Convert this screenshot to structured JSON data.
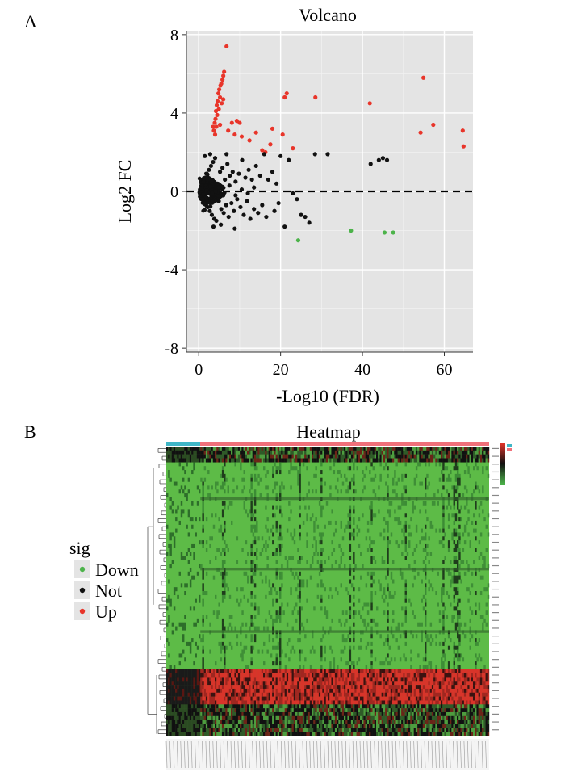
{
  "panels": {
    "a": "A",
    "b": "B"
  },
  "chart_data": [
    {
      "type": "scatter",
      "title": "Volcano",
      "xlabel": "-Log10 (FDR)",
      "ylabel": "Log2 FC",
      "xlim": [
        -3,
        67
      ],
      "ylim": [
        -8.2,
        8.2
      ],
      "xticks": [
        0,
        20,
        40,
        60
      ],
      "yticks": [
        -8,
        -4,
        0,
        4,
        8
      ],
      "threshold_line_y": 0,
      "grid": true,
      "series": [
        {
          "name": "Up",
          "color": "#e8352a",
          "points": [
            [
              6.8,
              7.4
            ],
            [
              6.2,
              6.1
            ],
            [
              6.0,
              5.9
            ],
            [
              5.8,
              5.7
            ],
            [
              5.5,
              5.5
            ],
            [
              5.3,
              5.4
            ],
            [
              5.0,
              5.2
            ],
            [
              4.8,
              5.0
            ],
            [
              5.2,
              4.8
            ],
            [
              4.6,
              4.6
            ],
            [
              4.4,
              4.4
            ],
            [
              4.9,
              4.2
            ],
            [
              4.2,
              4.1
            ],
            [
              4.5,
              3.9
            ],
            [
              4.1,
              3.7
            ],
            [
              3.9,
              3.5
            ],
            [
              4.3,
              3.3
            ],
            [
              3.7,
              3.1
            ],
            [
              3.5,
              3.3
            ],
            [
              4.0,
              2.9
            ],
            [
              5.6,
              4.5
            ],
            [
              6.0,
              4.7
            ],
            [
              5.2,
              3.4
            ],
            [
              7.2,
              3.1
            ],
            [
              8.1,
              3.5
            ],
            [
              9.3,
              3.6
            ],
            [
              10.0,
              3.5
            ],
            [
              8.8,
              2.9
            ],
            [
              10.5,
              2.8
            ],
            [
              12.4,
              2.6
            ],
            [
              14.0,
              3.0
            ],
            [
              15.5,
              2.1
            ],
            [
              16.3,
              2.0
            ],
            [
              18.0,
              3.2
            ],
            [
              17.5,
              2.4
            ],
            [
              20.5,
              2.9
            ],
            [
              21.0,
              4.8
            ],
            [
              21.5,
              5.0
            ],
            [
              23.0,
              2.2
            ],
            [
              28.5,
              4.8
            ],
            [
              41.8,
              4.5
            ],
            [
              54.9,
              5.8
            ],
            [
              57.3,
              3.4
            ],
            [
              54.2,
              3.0
            ],
            [
              64.5,
              3.1
            ],
            [
              64.7,
              2.3
            ]
          ]
        },
        {
          "name": "Not",
          "color": "#111111",
          "points": [
            [
              0.3,
              0.1
            ],
            [
              0.5,
              -0.2
            ],
            [
              0.8,
              0.3
            ],
            [
              1.0,
              -0.4
            ],
            [
              1.2,
              0.5
            ],
            [
              1.4,
              -0.6
            ],
            [
              1.6,
              0.7
            ],
            [
              1.8,
              -0.3
            ],
            [
              2.0,
              0.9
            ],
            [
              2.2,
              -0.8
            ],
            [
              2.5,
              1.1
            ],
            [
              2.7,
              -1.0
            ],
            [
              3.0,
              1.3
            ],
            [
              3.2,
              -1.2
            ],
            [
              3.5,
              1.5
            ],
            [
              3.8,
              -1.4
            ],
            [
              4.0,
              1.7
            ],
            [
              4.3,
              -1.5
            ],
            [
              4.6,
              0.4
            ],
            [
              4.9,
              -0.5
            ],
            [
              5.2,
              1.0
            ],
            [
              5.5,
              -0.9
            ],
            [
              5.8,
              1.2
            ],
            [
              6.1,
              -1.1
            ],
            [
              6.4,
              0.6
            ],
            [
              6.7,
              -0.7
            ],
            [
              7.0,
              1.4
            ],
            [
              7.3,
              -1.3
            ],
            [
              7.6,
              0.8
            ],
            [
              8.0,
              -0.6
            ],
            [
              8.3,
              1.0
            ],
            [
              8.6,
              -1.0
            ],
            [
              9.0,
              0.5
            ],
            [
              9.4,
              -0.4
            ],
            [
              9.8,
              0.9
            ],
            [
              10.2,
              -0.8
            ],
            [
              10.6,
              1.6
            ],
            [
              11.0,
              -1.2
            ],
            [
              11.4,
              0.7
            ],
            [
              11.8,
              -0.5
            ],
            [
              12.2,
              1.1
            ],
            [
              12.6,
              -1.4
            ],
            [
              13.0,
              0.6
            ],
            [
              13.5,
              -0.9
            ],
            [
              14.0,
              1.3
            ],
            [
              14.5,
              -1.1
            ],
            [
              15.0,
              0.8
            ],
            [
              15.5,
              -0.7
            ],
            [
              16.0,
              1.9
            ],
            [
              16.5,
              -1.3
            ],
            [
              17.0,
              0.6
            ],
            [
              18.0,
              1.0
            ],
            [
              18.5,
              -1.0
            ],
            [
              19.0,
              0.4
            ],
            [
              19.5,
              -0.6
            ],
            [
              2.4,
              0.2
            ],
            [
              3.3,
              -0.1
            ],
            [
              4.1,
              0.0
            ],
            [
              5.0,
              0.2
            ],
            [
              6.0,
              -0.2
            ],
            [
              7.5,
              0.3
            ],
            [
              9.0,
              -0.2
            ],
            [
              10.5,
              0.1
            ],
            [
              12.0,
              -0.1
            ],
            [
              13.5,
              0.2
            ],
            [
              1.5,
              1.8
            ],
            [
              2.8,
              1.9
            ],
            [
              3.6,
              -1.8
            ],
            [
              5.4,
              -1.7
            ],
            [
              6.8,
              1.9
            ],
            [
              8.8,
              -1.9
            ],
            [
              20.0,
              1.8
            ],
            [
              21.0,
              -1.8
            ],
            [
              22.0,
              1.6
            ],
            [
              24.0,
              -0.4
            ],
            [
              25.0,
              -1.2
            ],
            [
              26.0,
              -1.3
            ],
            [
              27.0,
              -1.6
            ],
            [
              28.4,
              1.9
            ],
            [
              31.5,
              1.9
            ],
            [
              42.0,
              1.4
            ],
            [
              44.0,
              1.6
            ],
            [
              45.0,
              1.7
            ],
            [
              46.0,
              1.6
            ],
            [
              23.0,
              -0.1
            ],
            [
              0.2,
              -0.05
            ],
            [
              0.6,
              0.15
            ],
            [
              1.1,
              -0.15
            ],
            [
              1.9,
              0.05
            ],
            [
              2.9,
              0.25
            ]
          ]
        },
        {
          "name": "Down",
          "color": "#4cb34a",
          "points": [
            [
              24.3,
              -2.5
            ],
            [
              37.2,
              -2.0
            ],
            [
              45.4,
              -2.1
            ],
            [
              47.5,
              -2.1
            ]
          ]
        }
      ]
    },
    {
      "type": "heatmap",
      "title": "Heatmap",
      "rows": 74,
      "cols": 180,
      "color_scale": [
        "#4cb34a",
        "#111111",
        "#e8352a"
      ],
      "group_bar_colors": [
        "#3fb6c6",
        "#f0707a"
      ]
    }
  ],
  "legend": {
    "title": "sig",
    "items": [
      {
        "label": "Down",
        "color": "#4cb34a"
      },
      {
        "label": "Not",
        "color": "#111111"
      },
      {
        "label": "Up",
        "color": "#e8352a"
      }
    ]
  }
}
